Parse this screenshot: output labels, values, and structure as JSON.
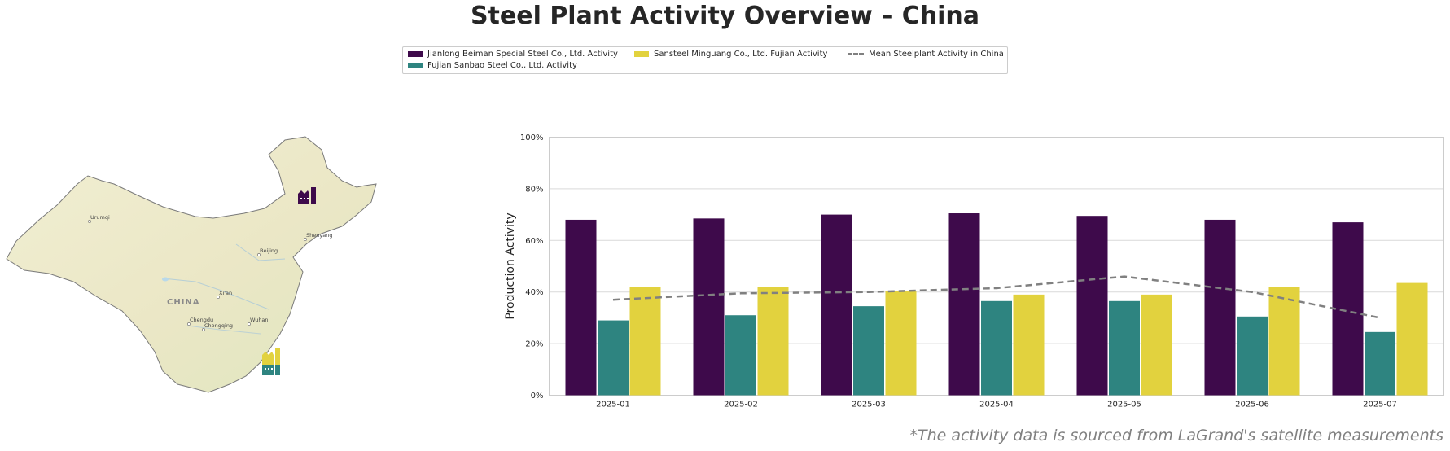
{
  "title": "Steel Plant Activity Overview – China",
  "footnote": "*The activity data is sourced from LaGrand's satellite measurements",
  "colors": {
    "jianlong": "#3e0a4b",
    "fujian_sanbao": "#2e8480",
    "sansteel": "#e2d23e",
    "mean": "#808080"
  },
  "map": {
    "country_label": "CHINA",
    "cities": [
      "Urumqi",
      "Beijing",
      "Shenyang",
      "Xi'an",
      "Chengdu",
      "Chongqing",
      "Wuhan"
    ],
    "plant_icons": [
      "jianlong-factory-icon",
      "sansteel-factory-icon",
      "fujian-sanbao-factory-icon"
    ]
  },
  "chart_data": {
    "type": "bar",
    "categories": [
      "2025-01",
      "2025-02",
      "2025-03",
      "2025-04",
      "2025-05",
      "2025-06",
      "2025-07"
    ],
    "series": [
      {
        "name": "Jianlong Beiman Special Steel Co., Ltd. Activity",
        "type": "bar",
        "color": "#3e0a4b",
        "values": [
          68,
          68.5,
          70,
          70.5,
          69.5,
          68,
          67
        ]
      },
      {
        "name": "Fujian Sanbao Steel Co., Ltd. Activity",
        "type": "bar",
        "color": "#2e8480",
        "values": [
          29,
          31,
          34.5,
          36.5,
          36.5,
          30.5,
          24.5
        ]
      },
      {
        "name": "Sansteel Minguang Co., Ltd. Fujian Activity",
        "type": "bar",
        "color": "#e2d23e",
        "values": [
          42,
          42,
          40.5,
          39,
          39,
          42,
          43.5
        ]
      },
      {
        "name": "Mean Steelplant Activity in China",
        "type": "line",
        "style": "dashed",
        "color": "#808080",
        "values": [
          37,
          39.5,
          40,
          41.5,
          46,
          40,
          30
        ]
      }
    ],
    "ylabel": "Production Activity",
    "xlabel": "",
    "ylim": [
      0,
      100
    ],
    "yticks": [
      "0%",
      "20%",
      "40%",
      "60%",
      "80%",
      "100%"
    ],
    "grid": true,
    "legend_position": "top-center"
  }
}
